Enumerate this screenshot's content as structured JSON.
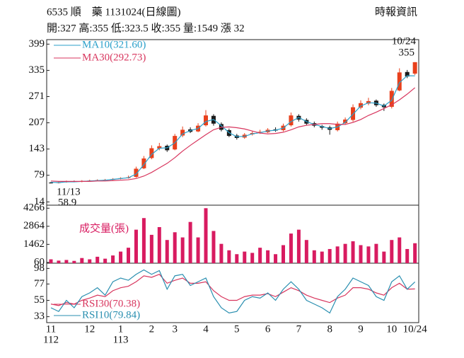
{
  "chart_data": {
    "type": "candlestick",
    "title": "6535 順　藥 1131024(日線圖)",
    "source": "時報資訊",
    "subtitle": "開:327 高:355 低:323.5 收:355 量:1549 漲 32",
    "low_label": "11/13",
    "categories": [
      "11",
      null,
      null,
      null,
      null,
      "12",
      null,
      null,
      null,
      "1",
      null,
      null,
      null,
      "2",
      null,
      null,
      "3",
      null,
      null,
      null,
      "4",
      null,
      null,
      null,
      "5",
      null,
      null,
      null,
      "6",
      null,
      null,
      null,
      "7",
      null,
      null,
      null,
      "8",
      null,
      null,
      null,
      "9",
      null,
      null,
      null,
      "10",
      null,
      null,
      "10/24"
    ],
    "year_labels": [
      "112",
      null,
      null,
      null,
      null,
      null,
      null,
      null,
      null,
      "113",
      null,
      null,
      null,
      null,
      null,
      null,
      null,
      null,
      null,
      null,
      null,
      null,
      null,
      null,
      null,
      null,
      null,
      null,
      null,
      null,
      null,
      null,
      null,
      null,
      null,
      null,
      null,
      null,
      null,
      null,
      null,
      null,
      null,
      null,
      null,
      null,
      null,
      null
    ],
    "up_color": "#e8401c",
    "down_color": "#1a1a1a",
    "open": [
      61,
      60,
      62,
      64,
      63,
      65,
      66,
      67,
      68,
      70,
      72,
      75,
      96,
      121,
      144,
      151,
      142,
      176,
      191,
      186,
      201,
      224,
      204,
      189,
      176,
      171,
      179,
      183,
      184,
      191,
      189,
      201,
      224,
      214,
      206,
      199,
      196,
      189,
      206,
      214,
      244,
      254,
      261,
      251,
      246,
      286,
      331,
      327
    ],
    "high": [
      63,
      64,
      66,
      66,
      67,
      68,
      69,
      70,
      72,
      74,
      78,
      100,
      126,
      152,
      158,
      154,
      180,
      198,
      196,
      206,
      238,
      228,
      208,
      193,
      180,
      182,
      186,
      190,
      194,
      196,
      205,
      232,
      228,
      218,
      210,
      202,
      200,
      210,
      220,
      252,
      262,
      268,
      264,
      254,
      292,
      340,
      336,
      355
    ],
    "low": [
      58.9,
      59,
      61,
      62,
      62,
      64,
      65,
      66,
      67,
      69,
      71,
      73,
      94,
      118,
      140,
      136,
      140,
      172,
      182,
      184,
      198,
      200,
      186,
      172,
      166,
      168,
      176,
      180,
      182,
      185,
      186,
      198,
      210,
      202,
      196,
      190,
      178,
      186,
      202,
      210,
      240,
      250,
      246,
      236,
      242,
      284,
      316,
      323.5
    ],
    "close": [
      60,
      62,
      64,
      63,
      65,
      66,
      67,
      68,
      70,
      72,
      74,
      95,
      120,
      145,
      150,
      140,
      175,
      190,
      185,
      200,
      225,
      205,
      190,
      175,
      170,
      178,
      182,
      185,
      190,
      188,
      200,
      225,
      215,
      205,
      200,
      195,
      190,
      205,
      215,
      245,
      255,
      260,
      250,
      245,
      285,
      330,
      320,
      355
    ],
    "ylim": [
      6,
      410
    ],
    "yticks": [
      399,
      335,
      271,
      207,
      143,
      79,
      14
    ],
    "series": [
      {
        "name": "MA10(321.60)",
        "color": "#2a9fc9",
        "values": [
          62,
          61,
          63,
          63,
          64,
          65,
          66,
          67,
          69,
          71,
          73,
          82,
          105,
          130,
          145,
          146,
          158,
          180,
          188,
          193,
          210,
          215,
          200,
          183,
          173,
          174,
          180,
          183,
          187,
          189,
          194,
          210,
          220,
          210,
          203,
          198,
          193,
          197,
          208,
          228,
          248,
          256,
          255,
          248,
          262,
          305,
          322,
          321.6
        ]
      },
      {
        "name": "MA30(292.73)",
        "color": "#d8365e",
        "values": [
          65,
          64,
          64,
          64,
          64,
          64,
          65,
          65,
          66,
          67,
          68,
          71,
          77,
          86,
          97,
          108,
          122,
          138,
          152,
          165,
          178,
          190,
          196,
          197,
          195,
          192,
          187,
          182,
          180,
          181,
          184,
          190,
          197,
          201,
          203,
          205,
          205,
          203,
          203,
          208,
          215,
          225,
          233,
          242,
          251,
          263,
          277,
          292.73
        ]
      }
    ],
    "volume": {
      "name": "成交量(張)",
      "color": "#d81b60",
      "ylim": [
        0,
        4500
      ],
      "yticks": [
        4266,
        2864,
        1462,
        60
      ],
      "values": [
        300,
        200,
        250,
        180,
        400,
        300,
        500,
        350,
        600,
        900,
        1200,
        2600,
        3500,
        2200,
        2800,
        1800,
        2400,
        2000,
        3200,
        2000,
        4266,
        2500,
        1500,
        1000,
        700,
        900,
        800,
        1200,
        1000,
        700,
        1400,
        2300,
        2600,
        1800,
        1000,
        900,
        1100,
        1300,
        1500,
        1700,
        1400,
        1300,
        1500,
        900,
        1800,
        2000,
        1100,
        1549
      ]
    },
    "rsi": {
      "ylim": [
        25,
        105
      ],
      "yticks": [
        98,
        77,
        55,
        33
      ],
      "series": [
        {
          "name": "RSI30(70.38)",
          "color": "#d8365e",
          "values": [
            50,
            48,
            52,
            50,
            55,
            58,
            62,
            60,
            68,
            72,
            74,
            80,
            88,
            86,
            90,
            78,
            82,
            85,
            78,
            78,
            80,
            68,
            60,
            55,
            55,
            60,
            62,
            62,
            64,
            60,
            66,
            72,
            68,
            62,
            58,
            55,
            52,
            58,
            62,
            72,
            72,
            70,
            65,
            62,
            72,
            78,
            70,
            70.38
          ]
        },
        {
          "name": "RSI10(79.84)",
          "color": "#2a8fb0",
          "values": [
            45,
            40,
            55,
            45,
            60,
            65,
            72,
            62,
            80,
            85,
            82,
            90,
            96,
            90,
            95,
            70,
            88,
            90,
            75,
            80,
            85,
            60,
            45,
            38,
            40,
            55,
            60,
            58,
            65,
            55,
            70,
            80,
            70,
            55,
            50,
            45,
            38,
            60,
            70,
            85,
            80,
            75,
            60,
            55,
            80,
            88,
            70,
            79.84
          ]
        }
      ]
    }
  }
}
